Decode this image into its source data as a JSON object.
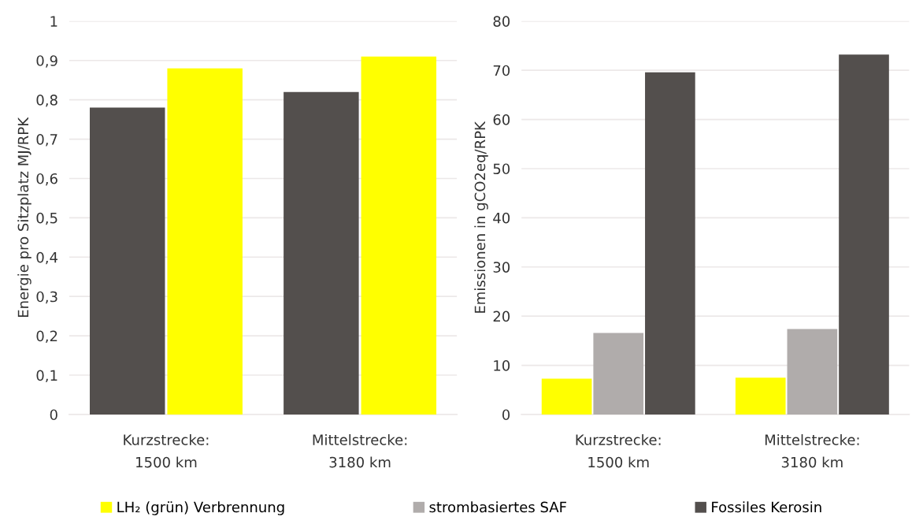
{
  "chart_data": [
    {
      "type": "bar",
      "ylabel": "Energie pro Sitzplatz MJ/RPK",
      "categories": [
        "Kurzstrecke:\n1500 km",
        "Mittelstrecke:\n3180 km"
      ],
      "series": [
        {
          "color": "#534f4d",
          "values": [
            0.78,
            0.82
          ]
        },
        {
          "color": "#ffff00",
          "values": [
            0.88,
            0.91
          ]
        }
      ],
      "ylim": [
        0,
        1
      ],
      "yticks": [
        {
          "value": 0,
          "label": "0"
        },
        {
          "value": 0.1,
          "label": "0,1"
        },
        {
          "value": 0.2,
          "label": "0,2"
        },
        {
          "value": 0.3,
          "label": "0,3"
        },
        {
          "value": 0.4,
          "label": "0,4"
        },
        {
          "value": 0.5,
          "label": "0,5"
        },
        {
          "value": 0.6,
          "label": "0,6"
        },
        {
          "value": 0.7,
          "label": "0,7"
        },
        {
          "value": 0.8,
          "label": "0,8"
        },
        {
          "value": 0.9,
          "label": "0,9"
        },
        {
          "value": 1,
          "label": "1"
        }
      ],
      "grid": "y"
    },
    {
      "type": "bar",
      "ylabel": "Emissionen in gCO2eq/RPK",
      "categories": [
        "Kurzstrecke:\n1500 km",
        "Mittelstrecke:\n3180 km"
      ],
      "series": [
        {
          "name": "LH₂ (grün) Verbrennung",
          "color": "#ffff00",
          "values": [
            7.3,
            7.5
          ]
        },
        {
          "name": "strombasiertes SAF",
          "color": "#b0acab",
          "values": [
            16.6,
            17.4
          ]
        },
        {
          "name": "Fossiles Kerosin",
          "color": "#534f4d",
          "values": [
            69.6,
            73.2
          ]
        }
      ],
      "ylim": [
        0,
        80
      ],
      "yticks": [
        0,
        10,
        20,
        30,
        40,
        50,
        60,
        70,
        80
      ],
      "grid": "y",
      "legend": "bottom"
    }
  ]
}
